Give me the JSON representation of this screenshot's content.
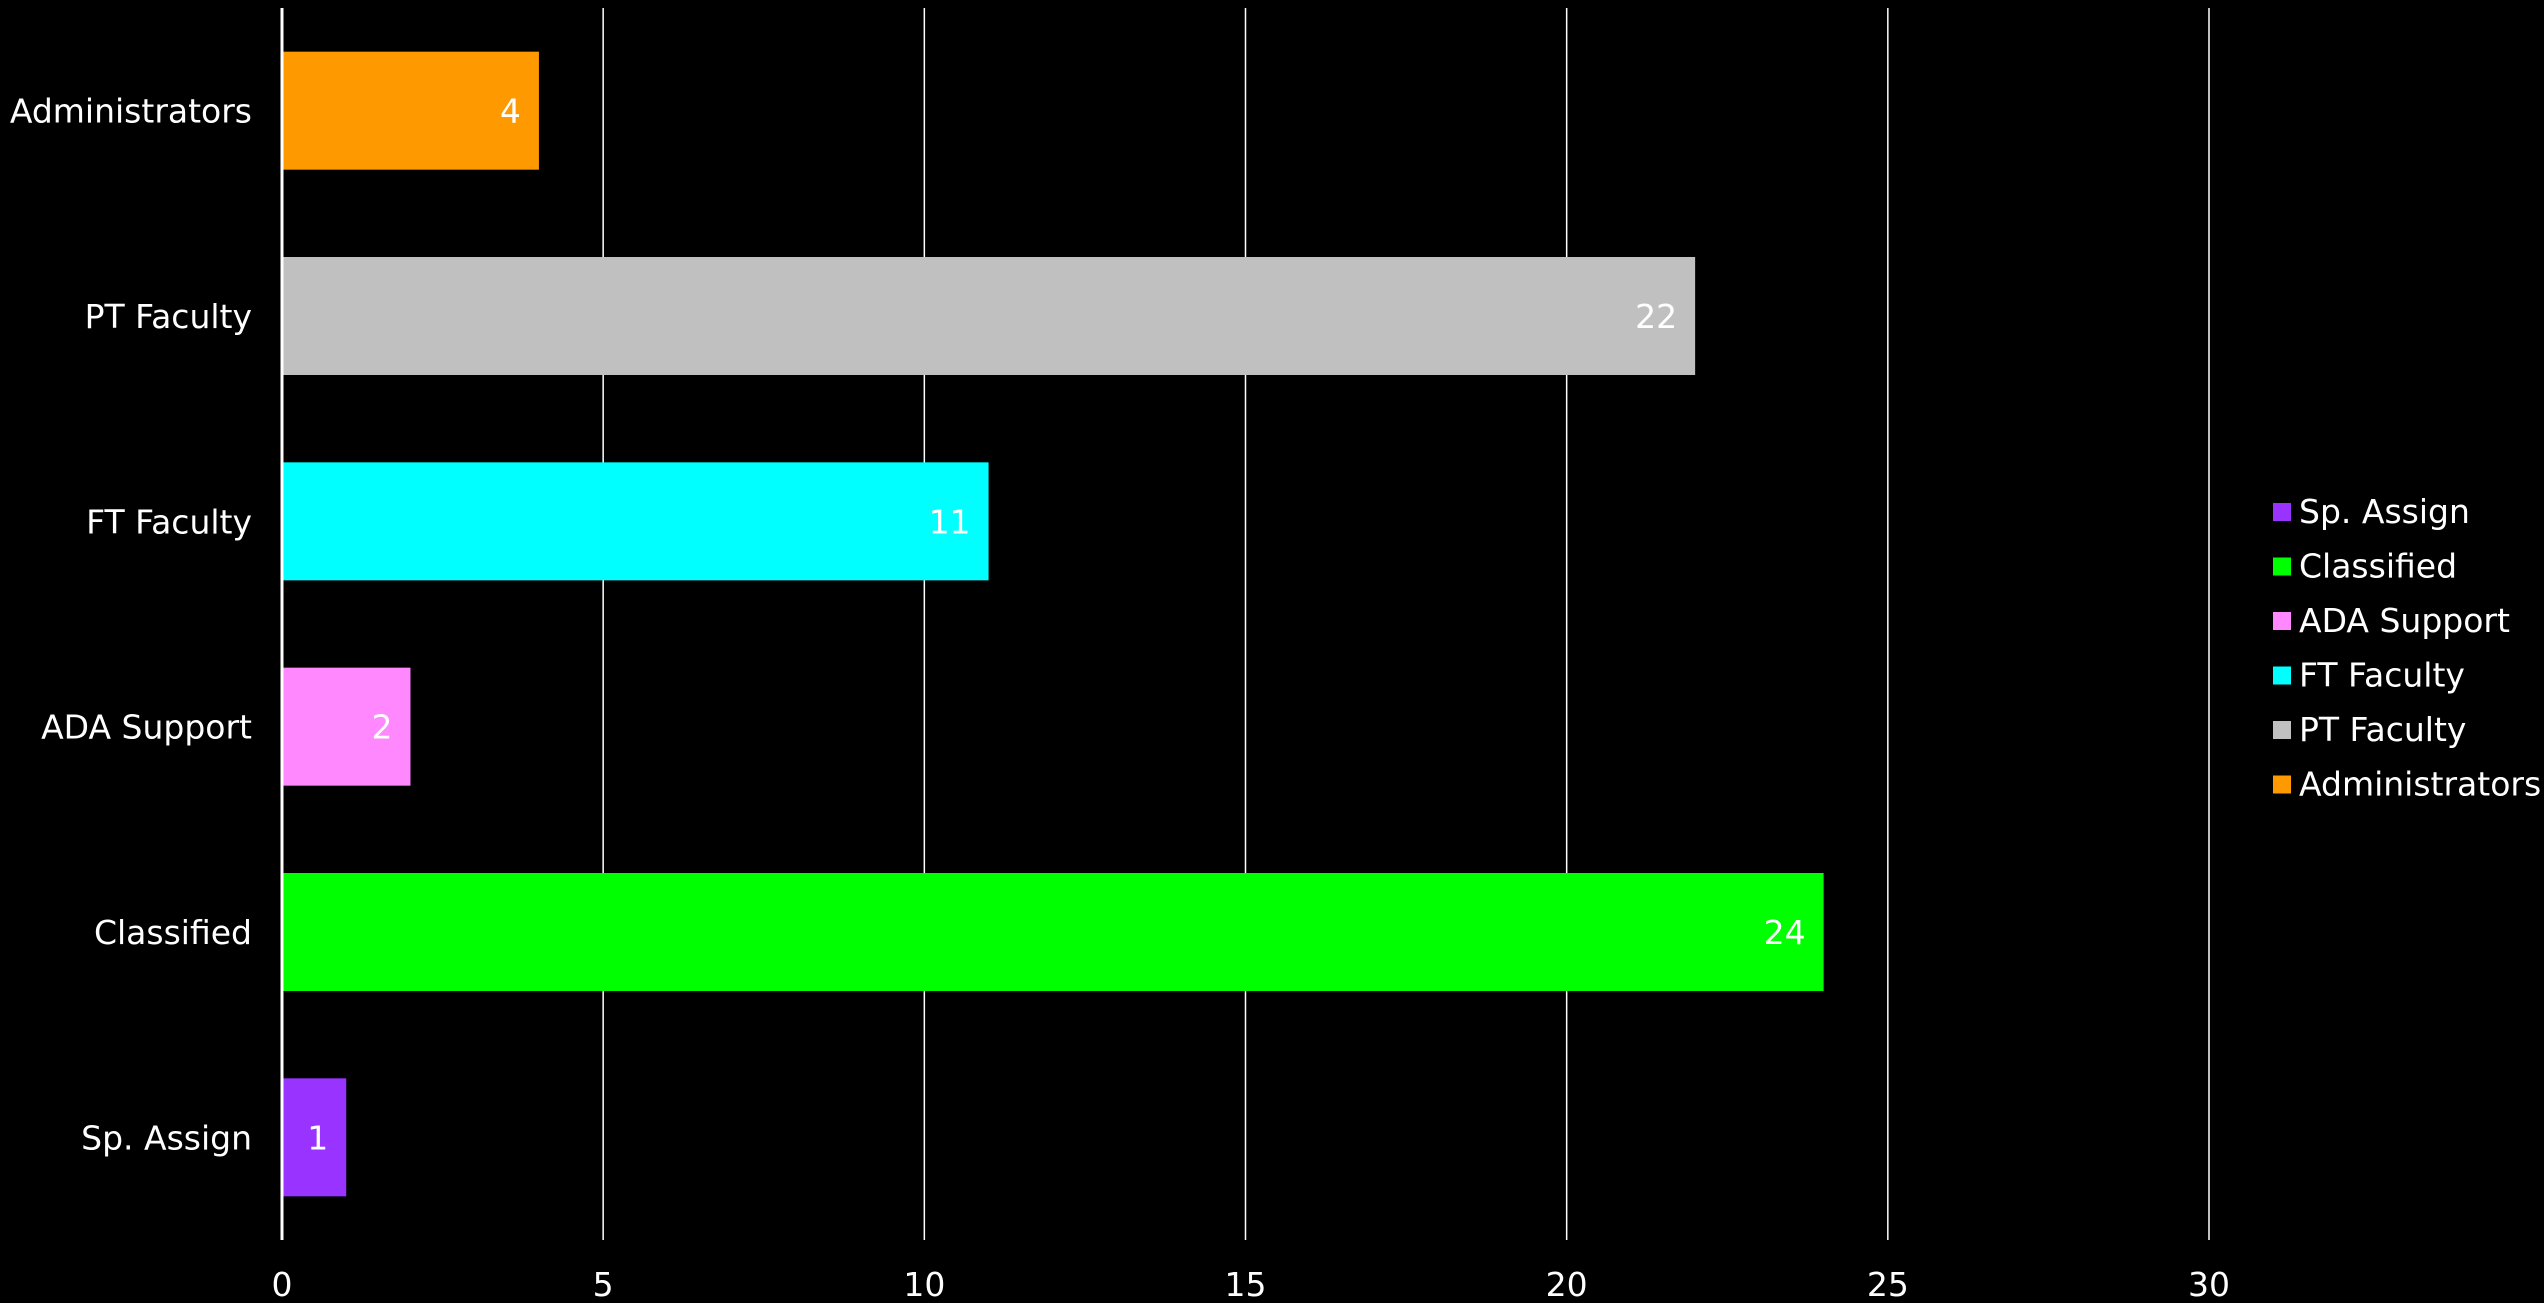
{
  "chart_data": {
    "type": "bar",
    "orientation": "horizontal",
    "title": "",
    "xlabel": "",
    "ylabel": "",
    "categories": [
      "Administrators",
      "PT Faculty",
      "FT Faculty",
      "ADA Support",
      "Classified",
      "Sp. Assign"
    ],
    "values": [
      4,
      22,
      11,
      2,
      24,
      1
    ],
    "colors": [
      "#ff9900",
      "#c0c0c0",
      "#00ffff",
      "#ff88ff",
      "#00ff00",
      "#9933ff"
    ],
    "xlim": [
      0,
      30
    ],
    "xticks": [
      0,
      5,
      10,
      15,
      20,
      25,
      30
    ],
    "grid": true,
    "data_labels": true,
    "legend": {
      "placement": "right",
      "entries": [
        {
          "label": "Sp. Assign",
          "color": "#9933ff"
        },
        {
          "label": "Classified",
          "color": "#00ff00"
        },
        {
          "label": "ADA Support",
          "color": "#ff88ff"
        },
        {
          "label": "FT Faculty",
          "color": "#00ffff"
        },
        {
          "label": "PT Faculty",
          "color": "#c0c0c0"
        },
        {
          "label": "Administrators",
          "color": "#ff9900"
        }
      ]
    },
    "background": "#000000",
    "text_color": "#ffffff",
    "grid_color": "#ffffff"
  }
}
